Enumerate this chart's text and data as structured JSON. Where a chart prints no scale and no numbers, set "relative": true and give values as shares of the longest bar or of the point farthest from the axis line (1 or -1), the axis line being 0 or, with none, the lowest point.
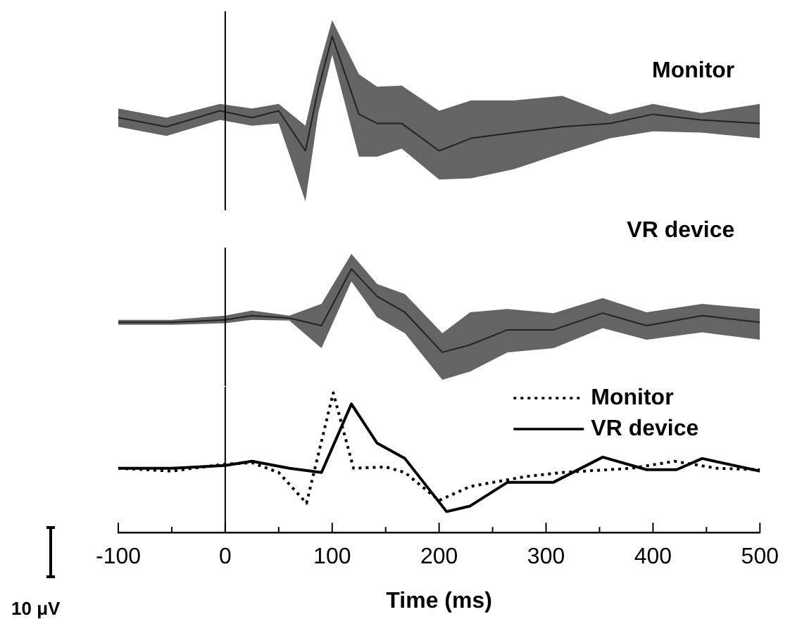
{
  "chart_data": [
    {
      "type": "line",
      "relative": true,
      "xlim": [
        -100,
        500
      ],
      "tick_labels": false,
      "series": [
        {
          "name": "Monitor",
          "color": "#222222",
          "x": [
            -100,
            -55,
            -5,
            25,
            50,
            75,
            87,
            100,
            125,
            142,
            165,
            200,
            230,
            270,
            315,
            360,
            400,
            445,
            500
          ],
          "values": [
            0.29,
            0.21,
            0.35,
            0.29,
            0.35,
            0,
            0.54,
            1,
            0.32,
            0.24,
            0.24,
            0,
            0.11,
            0.16,
            0.21,
            0.24,
            0.32,
            0.27,
            0.24
          ],
          "upper": [
            0.37,
            0.29,
            0.41,
            0.37,
            0.41,
            0.22,
            0.71,
            1.14,
            0.67,
            0.56,
            0.57,
            0.35,
            0.44,
            0.44,
            0.48,
            0.32,
            0.41,
            0.33,
            0.41
          ],
          "lower": [
            0.21,
            0.13,
            0.27,
            0.22,
            0.24,
            -0.44,
            0.33,
            0.84,
            -0.05,
            -0.05,
            0.02,
            -0.25,
            -0.24,
            -0.16,
            -0.02,
            0.11,
            0.17,
            0.16,
            0.11
          ]
        }
      ],
      "ref_lines": [
        {
          "axis": "x",
          "value": 0
        }
      ]
    },
    {
      "type": "line",
      "relative": true,
      "xlim": [
        -100,
        500
      ],
      "tick_labels": false,
      "series": [
        {
          "name": "VR device",
          "color": "#222222",
          "x": [
            -100,
            -50,
            0,
            25,
            60,
            90,
            118,
            142,
            168,
            203,
            229,
            264,
            307,
            353,
            394,
            446,
            500
          ],
          "values": [
            0.36,
            0.36,
            0.39,
            0.44,
            0.41,
            0.32,
            1,
            0.67,
            0.48,
            0,
            0.09,
            0.27,
            0.27,
            0.47,
            0.32,
            0.44,
            0.36
          ],
          "upper": [
            0.39,
            0.39,
            0.44,
            0.5,
            0.44,
            0.58,
            1.18,
            0.82,
            0.7,
            0.23,
            0.48,
            0.52,
            0.47,
            0.65,
            0.48,
            0.58,
            0.52
          ],
          "lower": [
            0.33,
            0.33,
            0.35,
            0.39,
            0.38,
            0.05,
            0.85,
            0.42,
            0.23,
            -0.33,
            -0.23,
            0,
            0.05,
            0.29,
            0.15,
            0.24,
            0.15
          ]
        }
      ],
      "ref_lines": [
        {
          "axis": "x",
          "value": 0
        }
      ]
    },
    {
      "type": "line",
      "relative": true,
      "xlabel": "Time (ms)",
      "xlim": [
        -100,
        500
      ],
      "xticks": [
        -100,
        {
          "value": -50,
          "label": null
        },
        0,
        {
          "value": 50,
          "label": null
        },
        100,
        {
          "value": 150,
          "label": null
        },
        200,
        {
          "value": 250,
          "label": null
        },
        300,
        {
          "value": 350,
          "label": null
        },
        400,
        {
          "value": 450,
          "label": null
        },
        500
      ],
      "legend": "top right",
      "annotations": [
        "10 μV"
      ],
      "series": [
        {
          "name": "Monitor",
          "color": "#000000",
          "line_style": "dotted",
          "x": [
            -100,
            -50,
            0,
            25,
            50,
            76,
            101,
            120,
            150,
            168,
            200,
            229,
            280,
            315,
            380,
            420,
            460,
            500
          ],
          "values": [
            0.46,
            0.44,
            0.49,
            0.5,
            0.43,
            0.21,
            1.0,
            0.46,
            0.47,
            0.43,
            0.23,
            0.33,
            0.4,
            0.43,
            0.46,
            0.51,
            0.46,
            0.45
          ]
        },
        {
          "name": "VR device",
          "color": "#000000",
          "line_style": "solid",
          "x": [
            -100,
            -50,
            0,
            25,
            60,
            90,
            118,
            142,
            168,
            207,
            229,
            264,
            307,
            353,
            394,
            422,
            446,
            500
          ],
          "values": [
            0.46,
            0.46,
            0.48,
            0.51,
            0.46,
            0.43,
            0.92,
            0.64,
            0.53,
            0.15,
            0.19,
            0.36,
            0.36,
            0.54,
            0.45,
            0.45,
            0.53,
            0.44
          ]
        }
      ],
      "ref_lines": [
        {
          "axis": "x",
          "value": 0
        }
      ]
    }
  ]
}
